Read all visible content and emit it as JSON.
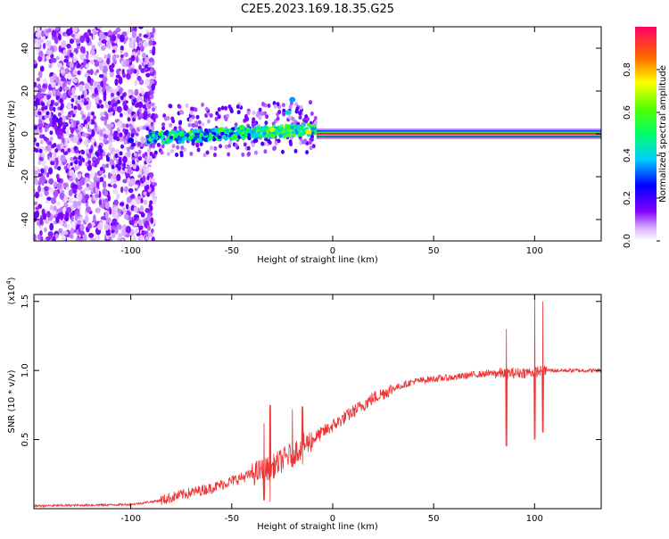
{
  "title": "C2E5.2023.169.18.35.G25",
  "chart_data": [
    {
      "type": "heatmap",
      "xlabel": "Height of straight line (km)",
      "ylabel": "Frequency (Hz)",
      "xlim": [
        -148,
        133
      ],
      "ylim": [
        -50,
        50
      ],
      "x_ticks": [
        -100,
        -50,
        0,
        50,
        100
      ],
      "y_ticks": [
        -40,
        -20,
        0,
        20,
        40
      ],
      "colorbar": {
        "label": "Normalized spectral amplitude",
        "range": [
          0,
          1
        ],
        "ticks": [
          "0.0",
          "0.2",
          "0.4",
          "0.6",
          "0.8"
        ]
      },
      "carrier_frequency_hz": 0,
      "strong_carrier_from_km": -8,
      "noise_region_until_km": -88,
      "bright_spots": [
        {
          "x": -100,
          "y": -3,
          "amp": 0.25
        },
        {
          "x": -75,
          "y": 0,
          "amp": 0.5
        },
        {
          "x": -55,
          "y": 2,
          "amp": 0.6
        },
        {
          "x": -45,
          "y": 3,
          "amp": 0.55
        },
        {
          "x": -30,
          "y": 2,
          "amp": 0.7
        },
        {
          "x": -22,
          "y": 10,
          "amp": 0.4
        },
        {
          "x": -20,
          "y": 16,
          "amp": 0.35
        },
        {
          "x": -12,
          "y": 1,
          "amp": 0.75
        },
        {
          "x": 100,
          "y": 1,
          "amp": 0.9
        }
      ],
      "grid": false
    },
    {
      "type": "line",
      "xlabel": "Height of straight line (km)",
      "ylabel": "SNR (10 * v/v)",
      "y_multiplier_label": "(x10^4)",
      "xlim": [
        -148,
        133
      ],
      "ylim": [
        0,
        1.55
      ],
      "x_ticks": [
        -100,
        -50,
        0,
        50,
        100
      ],
      "y_ticks": [
        "0.5",
        "1.0",
        "1.5"
      ],
      "series": [
        {
          "color": "#ee3333",
          "x": [
            -148,
            -100,
            -85,
            -75,
            -60,
            -50,
            -40,
            -30,
            -20,
            -10,
            0,
            10,
            20,
            30,
            40,
            50,
            60,
            70,
            80,
            90,
            100,
            105,
            115,
            133
          ],
          "y": [
            0.02,
            0.03,
            0.06,
            0.1,
            0.15,
            0.2,
            0.25,
            0.3,
            0.4,
            0.5,
            0.6,
            0.7,
            0.8,
            0.87,
            0.92,
            0.94,
            0.95,
            0.97,
            0.98,
            0.98,
            0.99,
            1.0,
            1.0,
            1.0
          ]
        }
      ],
      "spikes": [
        {
          "x": -34,
          "low": 0.06,
          "high": 0.62
        },
        {
          "x": -31,
          "low": 0.05,
          "high": 0.75
        },
        {
          "x": -20,
          "low": 0.3,
          "high": 0.72
        },
        {
          "x": -15,
          "low": 0.32,
          "high": 0.74
        },
        {
          "x": 86,
          "low": 0.45,
          "high": 1.3
        },
        {
          "x": 100,
          "low": 0.5,
          "high": 1.55
        },
        {
          "x": 104,
          "low": 0.55,
          "high": 1.5
        }
      ],
      "grid": false
    }
  ]
}
